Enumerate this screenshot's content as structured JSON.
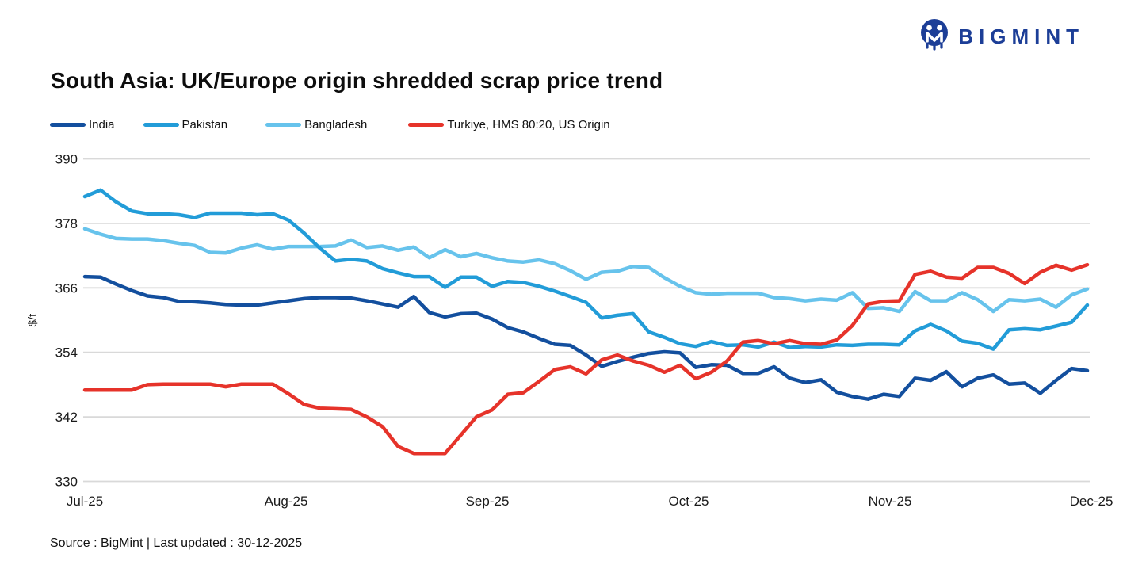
{
  "header": {
    "logo_text": "BIGMINT"
  },
  "title": "South Asia: UK/Europe origin shredded scrap price trend",
  "footer": {
    "source": "Source : BigMint | Last updated : 30-12-2025"
  },
  "colors": {
    "india": "#134f9e",
    "pakistan": "#229cd8",
    "bangladesh": "#67c3ec",
    "turkiye": "#e6332a",
    "gridline": "#d9d9d9",
    "logo_blue": "#1c3e97"
  },
  "chart_data": {
    "type": "line",
    "title": "South Asia: UK/Europe origin shredded scrap price trend",
    "xlabel": "",
    "ylabel": "$/t",
    "ylim": [
      330,
      390
    ],
    "yticks": [
      390,
      378,
      366,
      354,
      342,
      330
    ],
    "xticklabels": [
      "Jul-25",
      "Aug-25",
      "Sep-25",
      "Oct-25",
      "Nov-25",
      "Dec-25"
    ],
    "grid": "horizontal",
    "legend_position": "top-left",
    "series": [
      {
        "name": "India",
        "color": "#134f9e",
        "values": [
          368.1,
          368.0,
          366.7,
          365.5,
          364.5,
          364.2,
          363.5,
          363.4,
          363.2,
          362.9,
          362.8,
          362.8,
          363.2,
          363.6,
          364.0,
          364.2,
          364.2,
          364.1,
          363.6,
          363.0,
          362.4,
          364.4,
          361.4,
          360.6,
          361.2,
          361.3,
          360.2,
          358.6,
          357.8,
          356.6,
          355.5,
          355.3,
          353.5,
          351.4,
          352.3,
          353.1,
          353.8,
          354.1,
          353.9,
          351.2,
          351.7,
          351.6,
          350.1,
          350.1,
          351.3,
          349.2,
          348.4,
          348.9,
          346.6,
          345.8,
          345.3,
          346.2,
          345.8,
          349.2,
          348.8,
          350.4,
          347.6,
          349.2,
          349.8,
          348.1,
          348.3,
          346.4,
          348.8,
          351.0,
          350.6
        ]
      },
      {
        "name": "Pakistan",
        "color": "#229cd8",
        "values": [
          383.0,
          384.2,
          382.0,
          380.3,
          379.8,
          379.8,
          379.6,
          379.1,
          379.9,
          379.9,
          379.9,
          379.6,
          379.8,
          378.6,
          376.2,
          373.4,
          371.0,
          371.3,
          371.0,
          369.6,
          368.8,
          368.1,
          368.1,
          366.1,
          368.0,
          368.0,
          366.3,
          367.2,
          367.0,
          366.3,
          365.4,
          364.4,
          363.3,
          360.4,
          360.9,
          361.2,
          357.8,
          356.8,
          355.6,
          355.1,
          356.0,
          355.3,
          355.4,
          355.0,
          355.9,
          354.9,
          355.1,
          355.0,
          355.4,
          355.3,
          355.5,
          355.5,
          355.4,
          358.0,
          359.2,
          358.0,
          356.1,
          355.7,
          354.6,
          358.2,
          358.4,
          358.2,
          358.9,
          359.6,
          362.8
        ]
      },
      {
        "name": "Bangladesh",
        "color": "#67c3ec",
        "values": [
          377.0,
          376.0,
          375.2,
          375.1,
          375.1,
          374.8,
          374.3,
          373.9,
          372.6,
          372.5,
          373.4,
          374.0,
          373.2,
          373.7,
          373.7,
          373.7,
          373.8,
          374.9,
          373.5,
          373.8,
          373.0,
          373.6,
          371.6,
          373.1,
          371.8,
          372.4,
          371.6,
          371.0,
          370.8,
          371.2,
          370.5,
          369.2,
          367.6,
          368.9,
          369.1,
          370.0,
          369.8,
          367.9,
          366.3,
          365.1,
          364.8,
          365.0,
          365.0,
          365.0,
          364.2,
          364.0,
          363.6,
          363.9,
          363.7,
          365.1,
          362.2,
          362.3,
          361.6,
          365.3,
          363.6,
          363.6,
          365.1,
          363.8,
          361.6,
          363.8,
          363.6,
          363.9,
          362.4,
          364.7,
          365.8
        ]
      },
      {
        "name": "Turkiye, HMS 80:20, US Origin",
        "color": "#e6332a",
        "values": [
          347.0,
          347.0,
          347.0,
          347.0,
          348.0,
          348.1,
          348.1,
          348.1,
          348.1,
          347.6,
          348.1,
          348.1,
          348.1,
          346.3,
          344.3,
          343.6,
          343.5,
          343.4,
          342.0,
          340.2,
          336.5,
          335.2,
          335.2,
          335.2,
          338.6,
          342.0,
          343.3,
          346.2,
          346.5,
          348.6,
          350.8,
          351.3,
          350.0,
          352.6,
          353.5,
          352.4,
          351.6,
          350.3,
          351.6,
          349.1,
          350.3,
          352.4,
          355.9,
          356.2,
          355.6,
          356.2,
          355.6,
          355.5,
          356.3,
          359.0,
          363.0,
          363.5,
          363.6,
          368.5,
          369.1,
          368.0,
          367.8,
          369.8,
          369.8,
          368.7,
          366.8,
          368.9,
          370.2,
          369.3,
          370.3
        ]
      }
    ]
  }
}
